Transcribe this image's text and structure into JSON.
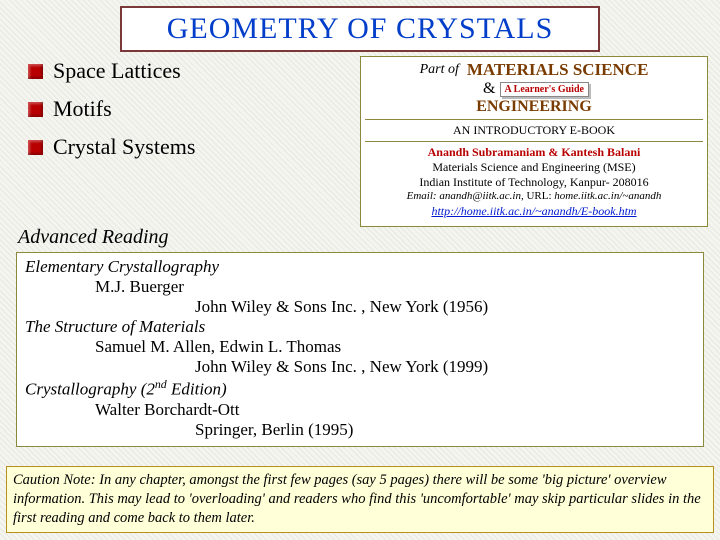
{
  "title": "GEOMETRY OF CRYSTALS",
  "bullets": [
    {
      "label": "Space Lattices"
    },
    {
      "label": "Motifs"
    },
    {
      "label": "Crystal Systems"
    }
  ],
  "advanced_reading": "Advanced Reading",
  "info": {
    "partof": "Part of",
    "materials_science": "MATERIALS SCIENCE",
    "amp": "&",
    "guide": "A Learner's Guide",
    "engineering": "ENGINEERING",
    "intro": "AN INTRODUCTORY E-BOOK",
    "authors": "Anandh Subramaniam & Kantesh Balani",
    "affil1": "Materials Science and Engineering (MSE)",
    "affil2": "Indian Institute of Technology, Kanpur- 208016",
    "email_label": "Email:",
    "email_val": "anandh@iitk.ac.in,",
    "url_label": "URL:",
    "url_val": "home.iitk.ac.in/~anandh",
    "link": "http://home.iitk.ac.in/~anandh/E-book.htm"
  },
  "refs": {
    "r1_title": "Elementary Crystallography",
    "r1_auth": "M.J. Buerger",
    "r1_pub": "John Wiley & Sons Inc. , New York (1956)",
    "r2_title": "The Structure of Materials",
    "r2_auth": "Samuel M. Allen, Edwin L. Thomas",
    "r2_pub": "John Wiley & Sons Inc. , New York (1999)",
    "r3_title_a": "Crystallography (2",
    "r3_title_sup": "nd",
    "r3_title_b": " Edition)",
    "r3_auth": "Walter Borchardt-Ott",
    "r3_pub": "Springer, Berlin (1995)"
  },
  "caution": "Caution Note: In any chapter, amongst the first few pages (say 5 pages) there will be some 'big picture' overview information. This may lead to 'overloading' and readers who find this 'uncomfortable' may skip particular slides in the first reading and come back to them later.",
  "colors": {
    "title_text": "#023ec9",
    "title_border": "#7a3838",
    "bullet_box": "#b80000",
    "brown_heading": "#7a3b00",
    "author_red": "#b80000",
    "link_blue": "#0018d0",
    "caution_bg": "#ffffd8",
    "caution_border": "#b89020",
    "box_border": "#8a8a3a"
  }
}
